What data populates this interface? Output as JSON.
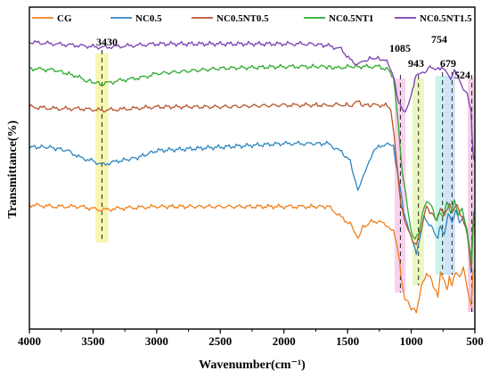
{
  "chart_data": {
    "type": "line",
    "xlabel": "Wavenumber(cm⁻¹)",
    "ylabel": "Transmittance(%)",
    "xlim": [
      4000,
      500
    ],
    "x_reversed": true,
    "x_ticks": [
      4000,
      3500,
      3000,
      2500,
      2000,
      1500,
      1000,
      500
    ],
    "y_ticks_shown": false,
    "grid": false,
    "legend_position": "top",
    "series": [
      {
        "name": "CG",
        "color": "#f07f1c",
        "points": [
          [
            4000,
            0.155
          ],
          [
            3800,
            0.15
          ],
          [
            3600,
            0.15
          ],
          [
            3430,
            0.14
          ],
          [
            3300,
            0.145
          ],
          [
            3000,
            0.15
          ],
          [
            2600,
            0.15
          ],
          [
            2000,
            0.15
          ],
          [
            1800,
            0.15
          ],
          [
            1650,
            0.15
          ],
          [
            1550,
            0.12
          ],
          [
            1480,
            0.1
          ],
          [
            1420,
            0.06
          ],
          [
            1380,
            0.09
          ],
          [
            1300,
            0.11
          ],
          [
            1200,
            0.1
          ],
          [
            1140,
            0.08
          ],
          [
            1100,
            0.02
          ],
          [
            1080,
            -0.05
          ],
          [
            1050,
            -0.11
          ],
          [
            1000,
            -0.14
          ],
          [
            960,
            -0.15
          ],
          [
            920,
            -0.08
          ],
          [
            880,
            -0.04
          ],
          [
            840,
            -0.06
          ],
          [
            790,
            -0.11
          ],
          [
            770,
            -0.04
          ],
          [
            740,
            -0.06
          ],
          [
            720,
            -0.09
          ],
          [
            700,
            -0.05
          ],
          [
            680,
            -0.08
          ],
          [
            660,
            -0.04
          ],
          [
            620,
            -0.05
          ],
          [
            590,
            -0.02
          ],
          [
            560,
            -0.08
          ],
          [
            530,
            -0.14
          ],
          [
            515,
            -0.04
          ],
          [
            500,
            -0.03
          ]
        ]
      },
      {
        "name": "NC0.5",
        "color": "#2e86c1",
        "points": [
          [
            4000,
            0.32
          ],
          [
            3850,
            0.32
          ],
          [
            3700,
            0.31
          ],
          [
            3600,
            0.29
          ],
          [
            3500,
            0.28
          ],
          [
            3430,
            0.27
          ],
          [
            3300,
            0.28
          ],
          [
            3150,
            0.29
          ],
          [
            3000,
            0.31
          ],
          [
            2500,
            0.32
          ],
          [
            2000,
            0.33
          ],
          [
            1800,
            0.33
          ],
          [
            1650,
            0.33
          ],
          [
            1560,
            0.31
          ],
          [
            1480,
            0.28
          ],
          [
            1420,
            0.2
          ],
          [
            1390,
            0.22
          ],
          [
            1300,
            0.31
          ],
          [
            1200,
            0.33
          ],
          [
            1140,
            0.32
          ],
          [
            1100,
            0.23
          ],
          [
            1060,
            0.14
          ],
          [
            1000,
            0.06
          ],
          [
            960,
            0.02
          ],
          [
            930,
            0.06
          ],
          [
            900,
            0.12
          ],
          [
            860,
            0.1
          ],
          [
            820,
            0.08
          ],
          [
            790,
            0.06
          ],
          [
            770,
            0.1
          ],
          [
            740,
            0.07
          ],
          [
            710,
            0.13
          ],
          [
            680,
            0.1
          ],
          [
            650,
            0.14
          ],
          [
            620,
            0.11
          ],
          [
            590,
            0.12
          ],
          [
            560,
            0.08
          ],
          [
            530,
            -0.04
          ],
          [
            515,
            0.09
          ],
          [
            500,
            0.1
          ]
        ]
      },
      {
        "name": "NC0.5NT0.5",
        "color": "#b4552b",
        "points": [
          [
            4000,
            0.435
          ],
          [
            3800,
            0.43
          ],
          [
            3600,
            0.43
          ],
          [
            3430,
            0.425
          ],
          [
            3200,
            0.43
          ],
          [
            3000,
            0.435
          ],
          [
            2500,
            0.435
          ],
          [
            2000,
            0.44
          ],
          [
            1800,
            0.44
          ],
          [
            1650,
            0.44
          ],
          [
            1560,
            0.44
          ],
          [
            1480,
            0.44
          ],
          [
            1420,
            0.45
          ],
          [
            1380,
            0.44
          ],
          [
            1300,
            0.44
          ],
          [
            1200,
            0.44
          ],
          [
            1160,
            0.43
          ],
          [
            1120,
            0.3
          ],
          [
            1080,
            0.15
          ],
          [
            1040,
            0.1
          ],
          [
            1000,
            0.06
          ],
          [
            960,
            0.04
          ],
          [
            920,
            0.09
          ],
          [
            880,
            0.15
          ],
          [
            840,
            0.13
          ],
          [
            800,
            0.11
          ],
          [
            770,
            0.15
          ],
          [
            740,
            0.12
          ],
          [
            700,
            0.16
          ],
          [
            670,
            0.14
          ],
          [
            640,
            0.15
          ],
          [
            600,
            0.12
          ],
          [
            560,
            0.07
          ],
          [
            530,
            -0.02
          ],
          [
            515,
            0.11
          ],
          [
            500,
            0.12
          ]
        ]
      },
      {
        "name": "NC0.5NT1",
        "color": "#2eaa2e",
        "points": [
          [
            4000,
            0.545
          ],
          [
            3800,
            0.54
          ],
          [
            3650,
            0.525
          ],
          [
            3550,
            0.51
          ],
          [
            3430,
            0.5
          ],
          [
            3300,
            0.51
          ],
          [
            3100,
            0.52
          ],
          [
            3000,
            0.53
          ],
          [
            2500,
            0.545
          ],
          [
            2000,
            0.55
          ],
          [
            1800,
            0.55
          ],
          [
            1650,
            0.55
          ],
          [
            1600,
            0.545
          ],
          [
            1500,
            0.55
          ],
          [
            1420,
            0.55
          ],
          [
            1350,
            0.55
          ],
          [
            1250,
            0.55
          ],
          [
            1180,
            0.54
          ],
          [
            1140,
            0.52
          ],
          [
            1100,
            0.38
          ],
          [
            1070,
            0.25
          ],
          [
            1030,
            0.15
          ],
          [
            1000,
            0.08
          ],
          [
            970,
            0.06
          ],
          [
            940,
            0.07
          ],
          [
            910,
            0.13
          ],
          [
            880,
            0.17
          ],
          [
            840,
            0.15
          ],
          [
            800,
            0.11
          ],
          [
            780,
            0.14
          ],
          [
            750,
            0.12
          ],
          [
            720,
            0.16
          ],
          [
            690,
            0.13
          ],
          [
            660,
            0.17
          ],
          [
            630,
            0.13
          ],
          [
            600,
            0.14
          ],
          [
            570,
            0.09
          ],
          [
            540,
            0.03
          ],
          [
            525,
            -0.01
          ],
          [
            510,
            0.13
          ],
          [
            500,
            0.14
          ]
        ]
      },
      {
        "name": "NC0.5NT1.5",
        "color": "#7a3fb0",
        "points": [
          [
            4000,
            0.62
          ],
          [
            3800,
            0.615
          ],
          [
            3600,
            0.61
          ],
          [
            3430,
            0.605
          ],
          [
            3200,
            0.61
          ],
          [
            3000,
            0.615
          ],
          [
            2500,
            0.615
          ],
          [
            2000,
            0.615
          ],
          [
            1800,
            0.615
          ],
          [
            1650,
            0.61
          ],
          [
            1550,
            0.6
          ],
          [
            1480,
            0.57
          ],
          [
            1440,
            0.56
          ],
          [
            1410,
            0.555
          ],
          [
            1380,
            0.565
          ],
          [
            1300,
            0.575
          ],
          [
            1220,
            0.57
          ],
          [
            1180,
            0.56
          ],
          [
            1140,
            0.52
          ],
          [
            1100,
            0.45
          ],
          [
            1060,
            0.42
          ],
          [
            1020,
            0.44
          ],
          [
            1000,
            0.47
          ],
          [
            980,
            0.5
          ],
          [
            960,
            0.525
          ],
          [
            940,
            0.53
          ],
          [
            910,
            0.535
          ],
          [
            880,
            0.54
          ],
          [
            840,
            0.55
          ],
          [
            800,
            0.54
          ],
          [
            760,
            0.55
          ],
          [
            720,
            0.53
          ],
          [
            690,
            0.52
          ],
          [
            660,
            0.54
          ],
          [
            620,
            0.51
          ],
          [
            590,
            0.49
          ],
          [
            560,
            0.47
          ],
          [
            530,
            0.42
          ],
          [
            515,
            0.3
          ],
          [
            500,
            0.28
          ]
        ]
      }
    ],
    "peak_markers": [
      {
        "label": "3430",
        "x": 3430,
        "band": [
          3480,
          3380
        ],
        "color": "#f6f2a0"
      },
      {
        "label": "1085",
        "x": 1085,
        "band": [
          1130,
          1045
        ],
        "color": "#f7c6e8"
      },
      {
        "label": "943",
        "x": 943,
        "band": [
          990,
          900
        ],
        "color": "#e6f5b0"
      },
      {
        "label": "754",
        "x": 754,
        "band": [
          810,
          740
        ],
        "color": "#bff0ea"
      },
      {
        "label": "679",
        "x": 679,
        "band": [
          740,
          655
        ],
        "color": "#c6dcf6"
      },
      {
        "label": "524",
        "x": 524,
        "band": [
          555,
          505
        ],
        "color": "#f3bfe0"
      }
    ]
  }
}
